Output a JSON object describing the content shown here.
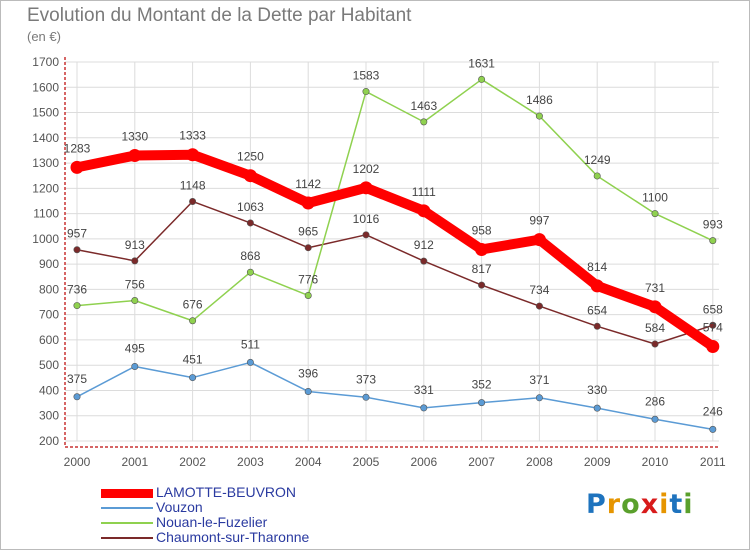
{
  "title": "Evolution du Montant de la Dette par Habitant",
  "unit": "(en €)",
  "logo": "Proxiti",
  "chart_data": {
    "type": "line",
    "title": "Evolution du Montant de la Dette par Habitant",
    "subtitle": "(en €)",
    "categories": [
      "2000",
      "2001",
      "2002",
      "2003",
      "2004",
      "2005",
      "2006",
      "2007",
      "2008",
      "2009",
      "2010",
      "2011"
    ],
    "ylim": [
      200,
      1700
    ],
    "yticks": [
      200,
      300,
      400,
      500,
      600,
      700,
      800,
      900,
      1000,
      1100,
      1200,
      1300,
      1400,
      1500,
      1600,
      1700
    ],
    "grid": true,
    "legend_position": "bottom-left",
    "series": [
      {
        "name": "LAMOTTE-BEUVRON",
        "color": "#ff0000",
        "values": [
          1283,
          1330,
          1333,
          1250,
          1142,
          1202,
          1111,
          958,
          997,
          814,
          731,
          574
        ]
      },
      {
        "name": "Vouzon",
        "color": "#5b9bd5",
        "values": [
          375,
          495,
          451,
          511,
          396,
          373,
          331,
          352,
          371,
          330,
          286,
          246
        ]
      },
      {
        "name": "Nouan-le-Fuzelier",
        "color": "#8fd14f",
        "values": [
          736,
          756,
          676,
          868,
          776,
          1583,
          1463,
          1631,
          1486,
          1249,
          1100,
          993
        ]
      },
      {
        "name": "Chaumont-sur-Tharonne",
        "color": "#7b2a2a",
        "values": [
          957,
          913,
          1148,
          1063,
          965,
          1016,
          912,
          817,
          734,
          654,
          584,
          658
        ]
      }
    ]
  }
}
